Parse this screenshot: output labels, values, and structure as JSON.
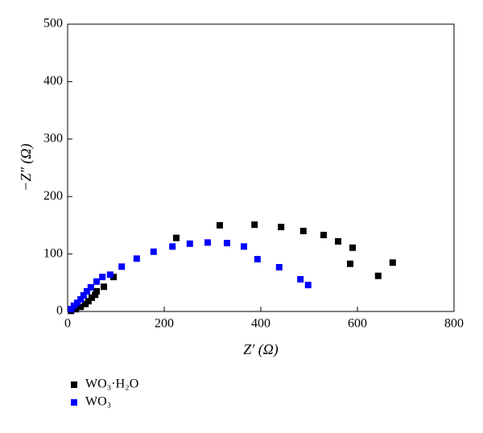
{
  "chart_data": {
    "type": "scatter",
    "xlabel": "Z′ (Ω)",
    "ylabel": "−Z″ (Ω)",
    "xlim": [
      0,
      800
    ],
    "ylim": [
      0,
      500
    ],
    "xticks": [
      0,
      200,
      400,
      600,
      800
    ],
    "yticks": [
      0,
      100,
      200,
      300,
      400,
      500
    ],
    "legend": "bottom-left",
    "series": [
      {
        "name": "WO₃·H₂O",
        "color": "#000000",
        "x": [
          7,
          17,
          27,
          37,
          43,
          50,
          57,
          60,
          75,
          95,
          225,
          315,
          387,
          442,
          488,
          530,
          560,
          590,
          585,
          643,
          673
        ],
        "values": [
          1,
          4,
          8,
          13,
          18,
          24,
          29,
          35,
          43,
          60,
          128,
          150,
          151,
          147,
          140,
          133,
          122,
          111,
          83,
          62,
          85
        ]
      },
      {
        "name": "WO₃",
        "color": "#0000ff",
        "x": [
          7,
          13,
          20,
          27,
          33,
          40,
          48,
          60,
          72,
          88,
          112,
          143,
          178,
          217,
          253,
          290,
          330,
          365,
          393,
          438,
          482,
          498
        ],
        "values": [
          4,
          10,
          15,
          21,
          28,
          35,
          42,
          52,
          60,
          64,
          78,
          92,
          104,
          113,
          118,
          120,
          119,
          113,
          91,
          77,
          56,
          46
        ]
      }
    ]
  }
}
